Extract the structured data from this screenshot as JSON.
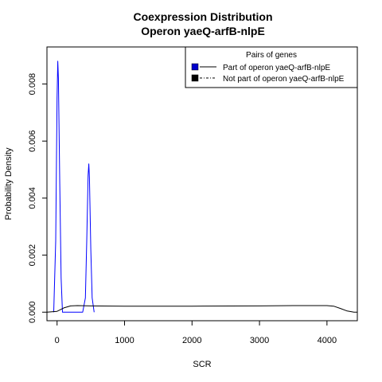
{
  "chart_data": {
    "type": "line",
    "title": "Coexpression Distribution",
    "subtitle": "Operon yaeQ-arfB-nlpE",
    "xlabel": "SCR",
    "ylabel": "Probability Density",
    "xlim": [
      -150,
      4450
    ],
    "ylim": [
      -0.0003,
      0.0093
    ],
    "x_ticks": [
      0,
      1000,
      2000,
      3000,
      4000
    ],
    "x_tick_labels": [
      "0",
      "1000",
      "2000",
      "3000",
      "4000"
    ],
    "y_ticks": [
      0.0,
      0.002,
      0.004,
      0.006,
      0.008
    ],
    "y_tick_labels": [
      "0.000",
      "0.002",
      "0.004",
      "0.006",
      "0.008"
    ],
    "grid": false,
    "legend": {
      "title": "Pairs of genes",
      "placement": "top-right",
      "entries": [
        {
          "label": "Part of operon yaeQ-arfB-nlpE",
          "color": "#0000cc"
        },
        {
          "label": "Not part of operon yaeQ-arfB-nlpE",
          "color": "#000000"
        }
      ]
    },
    "series": [
      {
        "color": "#0000ff",
        "x": [
          -50,
          -20,
          0,
          10,
          20,
          40,
          60,
          80,
          120,
          380,
          420,
          440,
          460,
          470,
          480,
          500,
          520,
          550
        ],
        "y": [
          0.0,
          0.0025,
          0.0075,
          0.0088,
          0.0082,
          0.0045,
          0.0012,
          0.0,
          0.0,
          0.0,
          0.0005,
          0.0025,
          0.0048,
          0.0052,
          0.0047,
          0.0022,
          0.0005,
          0.0
        ]
      },
      {
        "color": "#000000",
        "x": [
          -150,
          0,
          100,
          200,
          300,
          500,
          1000,
          2000,
          3000,
          3500,
          4000,
          4100,
          4200,
          4300,
          4400,
          4450
        ],
        "y": [
          0.0,
          3e-05,
          0.00015,
          0.00022,
          0.00023,
          0.00022,
          0.00021,
          0.00021,
          0.00022,
          0.00023,
          0.00023,
          0.00021,
          0.00013,
          4e-05,
          0.0,
          0.0
        ]
      }
    ]
  }
}
